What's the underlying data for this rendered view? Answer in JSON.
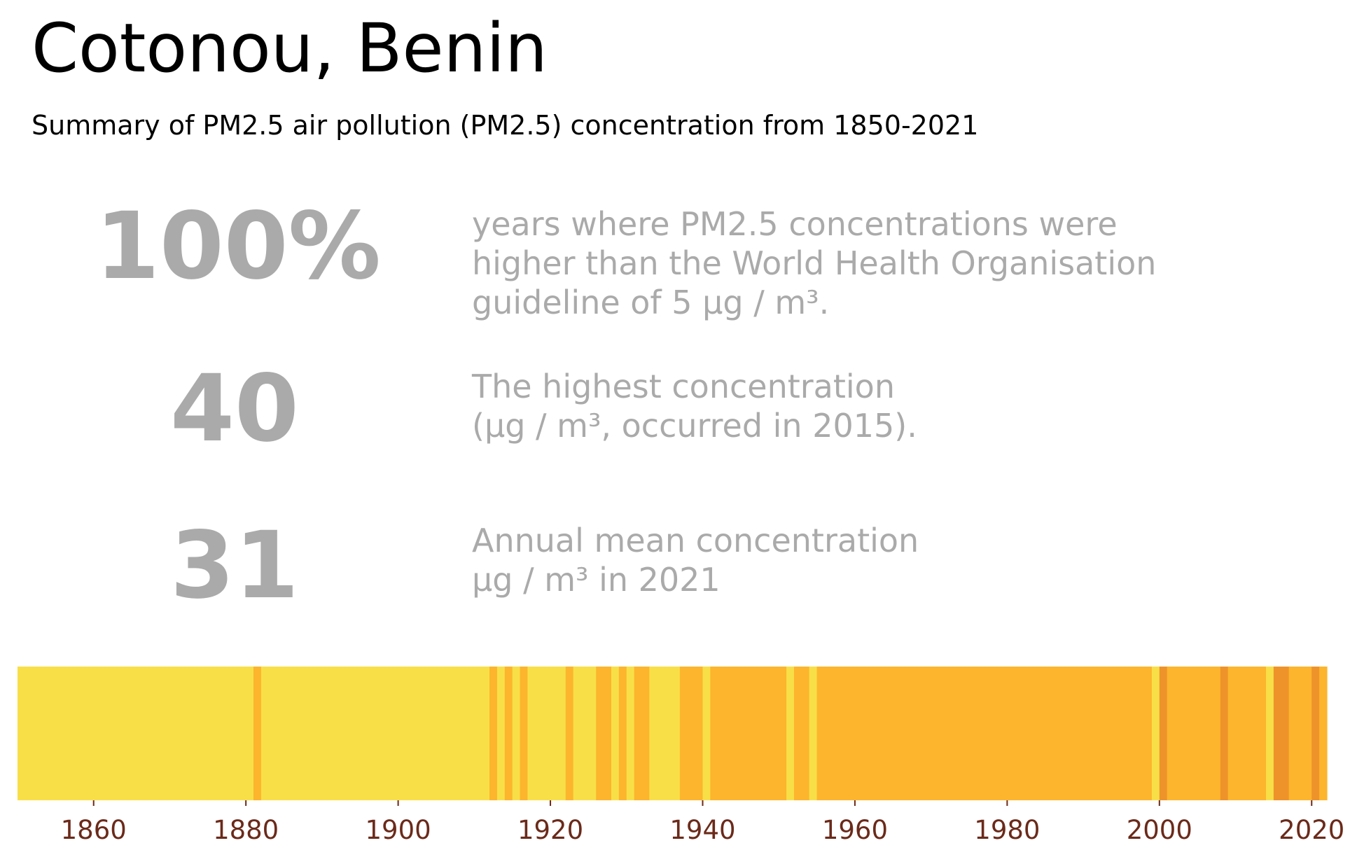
{
  "title": "Cotonou, Benin",
  "subtitle": "Summary of PM2.5 air pollution (PM2.5) concentration from 1850-2021",
  "stats": [
    {
      "value": "100%",
      "lines": [
        "years where PM2.5 concentrations were",
        "higher than the World Health Organisation",
        "guideline of 5 µg / m³."
      ]
    },
    {
      "value": "40",
      "lines": [
        "The highest concentration",
        "(µg / m³, occurred in 2015)."
      ]
    },
    {
      "value": "31",
      "lines": [
        "Annual mean concentration",
        "µg / m³ in 2021"
      ]
    }
  ],
  "chart_data": {
    "type": "heatmap",
    "title": "",
    "xlabel": "",
    "ylabel": "",
    "xlim": [
      1850,
      2022
    ],
    "tick_labels": [
      "1860",
      "1880",
      "1900",
      "1920",
      "1940",
      "1960",
      "1980",
      "2000",
      "2020"
    ],
    "tick_values": [
      1860,
      1880,
      1900,
      1920,
      1940,
      1960,
      1980,
      2000,
      2020
    ],
    "legend": "none",
    "grid": false,
    "colors": {
      "level_1": "#f8df48",
      "level_2": "#fcb52d",
      "level_3": "#ee9329",
      "tick_text": "#6b2a1a"
    },
    "bands": [
      {
        "start": 1850,
        "end": 1881,
        "level": 1
      },
      {
        "start": 1881,
        "end": 1882,
        "level": 2
      },
      {
        "start": 1882,
        "end": 1912,
        "level": 1
      },
      {
        "start": 1912,
        "end": 1913,
        "level": 2
      },
      {
        "start": 1913,
        "end": 1914,
        "level": 1
      },
      {
        "start": 1914,
        "end": 1915,
        "level": 2
      },
      {
        "start": 1915,
        "end": 1916,
        "level": 1
      },
      {
        "start": 1916,
        "end": 1917,
        "level": 2
      },
      {
        "start": 1917,
        "end": 1922,
        "level": 1
      },
      {
        "start": 1922,
        "end": 1923,
        "level": 2
      },
      {
        "start": 1923,
        "end": 1926,
        "level": 1
      },
      {
        "start": 1926,
        "end": 1928,
        "level": 2
      },
      {
        "start": 1928,
        "end": 1929,
        "level": 1
      },
      {
        "start": 1929,
        "end": 1930,
        "level": 2
      },
      {
        "start": 1930,
        "end": 1931,
        "level": 1
      },
      {
        "start": 1931,
        "end": 1933,
        "level": 2
      },
      {
        "start": 1933,
        "end": 1937,
        "level": 1
      },
      {
        "start": 1937,
        "end": 1940,
        "level": 2
      },
      {
        "start": 1940,
        "end": 1941,
        "level": 1
      },
      {
        "start": 1941,
        "end": 1951,
        "level": 2
      },
      {
        "start": 1951,
        "end": 1952,
        "level": 1
      },
      {
        "start": 1952,
        "end": 1954,
        "level": 2
      },
      {
        "start": 1954,
        "end": 1955,
        "level": 1
      },
      {
        "start": 1955,
        "end": 1999,
        "level": 2
      },
      {
        "start": 1999,
        "end": 2000,
        "level": 1
      },
      {
        "start": 2000,
        "end": 2001,
        "level": 3
      },
      {
        "start": 2001,
        "end": 2008,
        "level": 2
      },
      {
        "start": 2008,
        "end": 2009,
        "level": 3
      },
      {
        "start": 2009,
        "end": 2014,
        "level": 2
      },
      {
        "start": 2014,
        "end": 2015,
        "level": 1
      },
      {
        "start": 2015,
        "end": 2017,
        "level": 3
      },
      {
        "start": 2017,
        "end": 2020,
        "level": 2
      },
      {
        "start": 2020,
        "end": 2021,
        "level": 3
      },
      {
        "start": 2021,
        "end": 2022,
        "level": 2
      }
    ]
  }
}
